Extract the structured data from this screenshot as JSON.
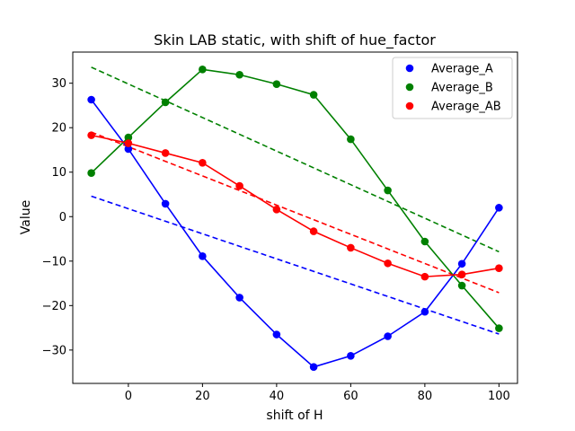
{
  "chart_data": {
    "type": "scatter",
    "title": "Skin LAB static, with shift of hue_factor",
    "xlabel": "shift of H",
    "ylabel": "Value",
    "xlim": [
      -15,
      105
    ],
    "ylim": [
      -37.5,
      37
    ],
    "xticks": [
      0,
      20,
      40,
      60,
      80,
      100
    ],
    "yticks": [
      -30,
      -20,
      -10,
      0,
      10,
      20,
      30
    ],
    "x": [
      -10,
      0,
      10,
      20,
      30,
      40,
      50,
      60,
      70,
      80,
      90,
      100
    ],
    "grid": false,
    "legend_position": "top-right",
    "series": [
      {
        "name": "Average_A",
        "color": "#0000ff",
        "values": [
          26.3,
          15.2,
          2.9,
          -8.9,
          -18.2,
          -26.5,
          -33.8,
          -31.3,
          -26.9,
          -21.4,
          -10.6,
          2.0
        ],
        "trend": [
          4.6,
          -26.4
        ]
      },
      {
        "name": "Average_B",
        "color": "#008000",
        "values": [
          9.8,
          17.8,
          25.7,
          33.1,
          31.9,
          29.8,
          27.4,
          17.4,
          5.9,
          -5.6,
          -15.5,
          -25.1
        ],
        "trend": [
          33.6,
          -7.9
        ]
      },
      {
        "name": "Average_AB",
        "color": "#ff0000",
        "values": [
          18.3,
          16.5,
          14.3,
          12.1,
          6.9,
          1.6,
          -3.3,
          -7.0,
          -10.5,
          -13.5,
          -13.0,
          -11.6
        ],
        "trend": [
          19.0,
          -17.1
        ]
      }
    ]
  }
}
